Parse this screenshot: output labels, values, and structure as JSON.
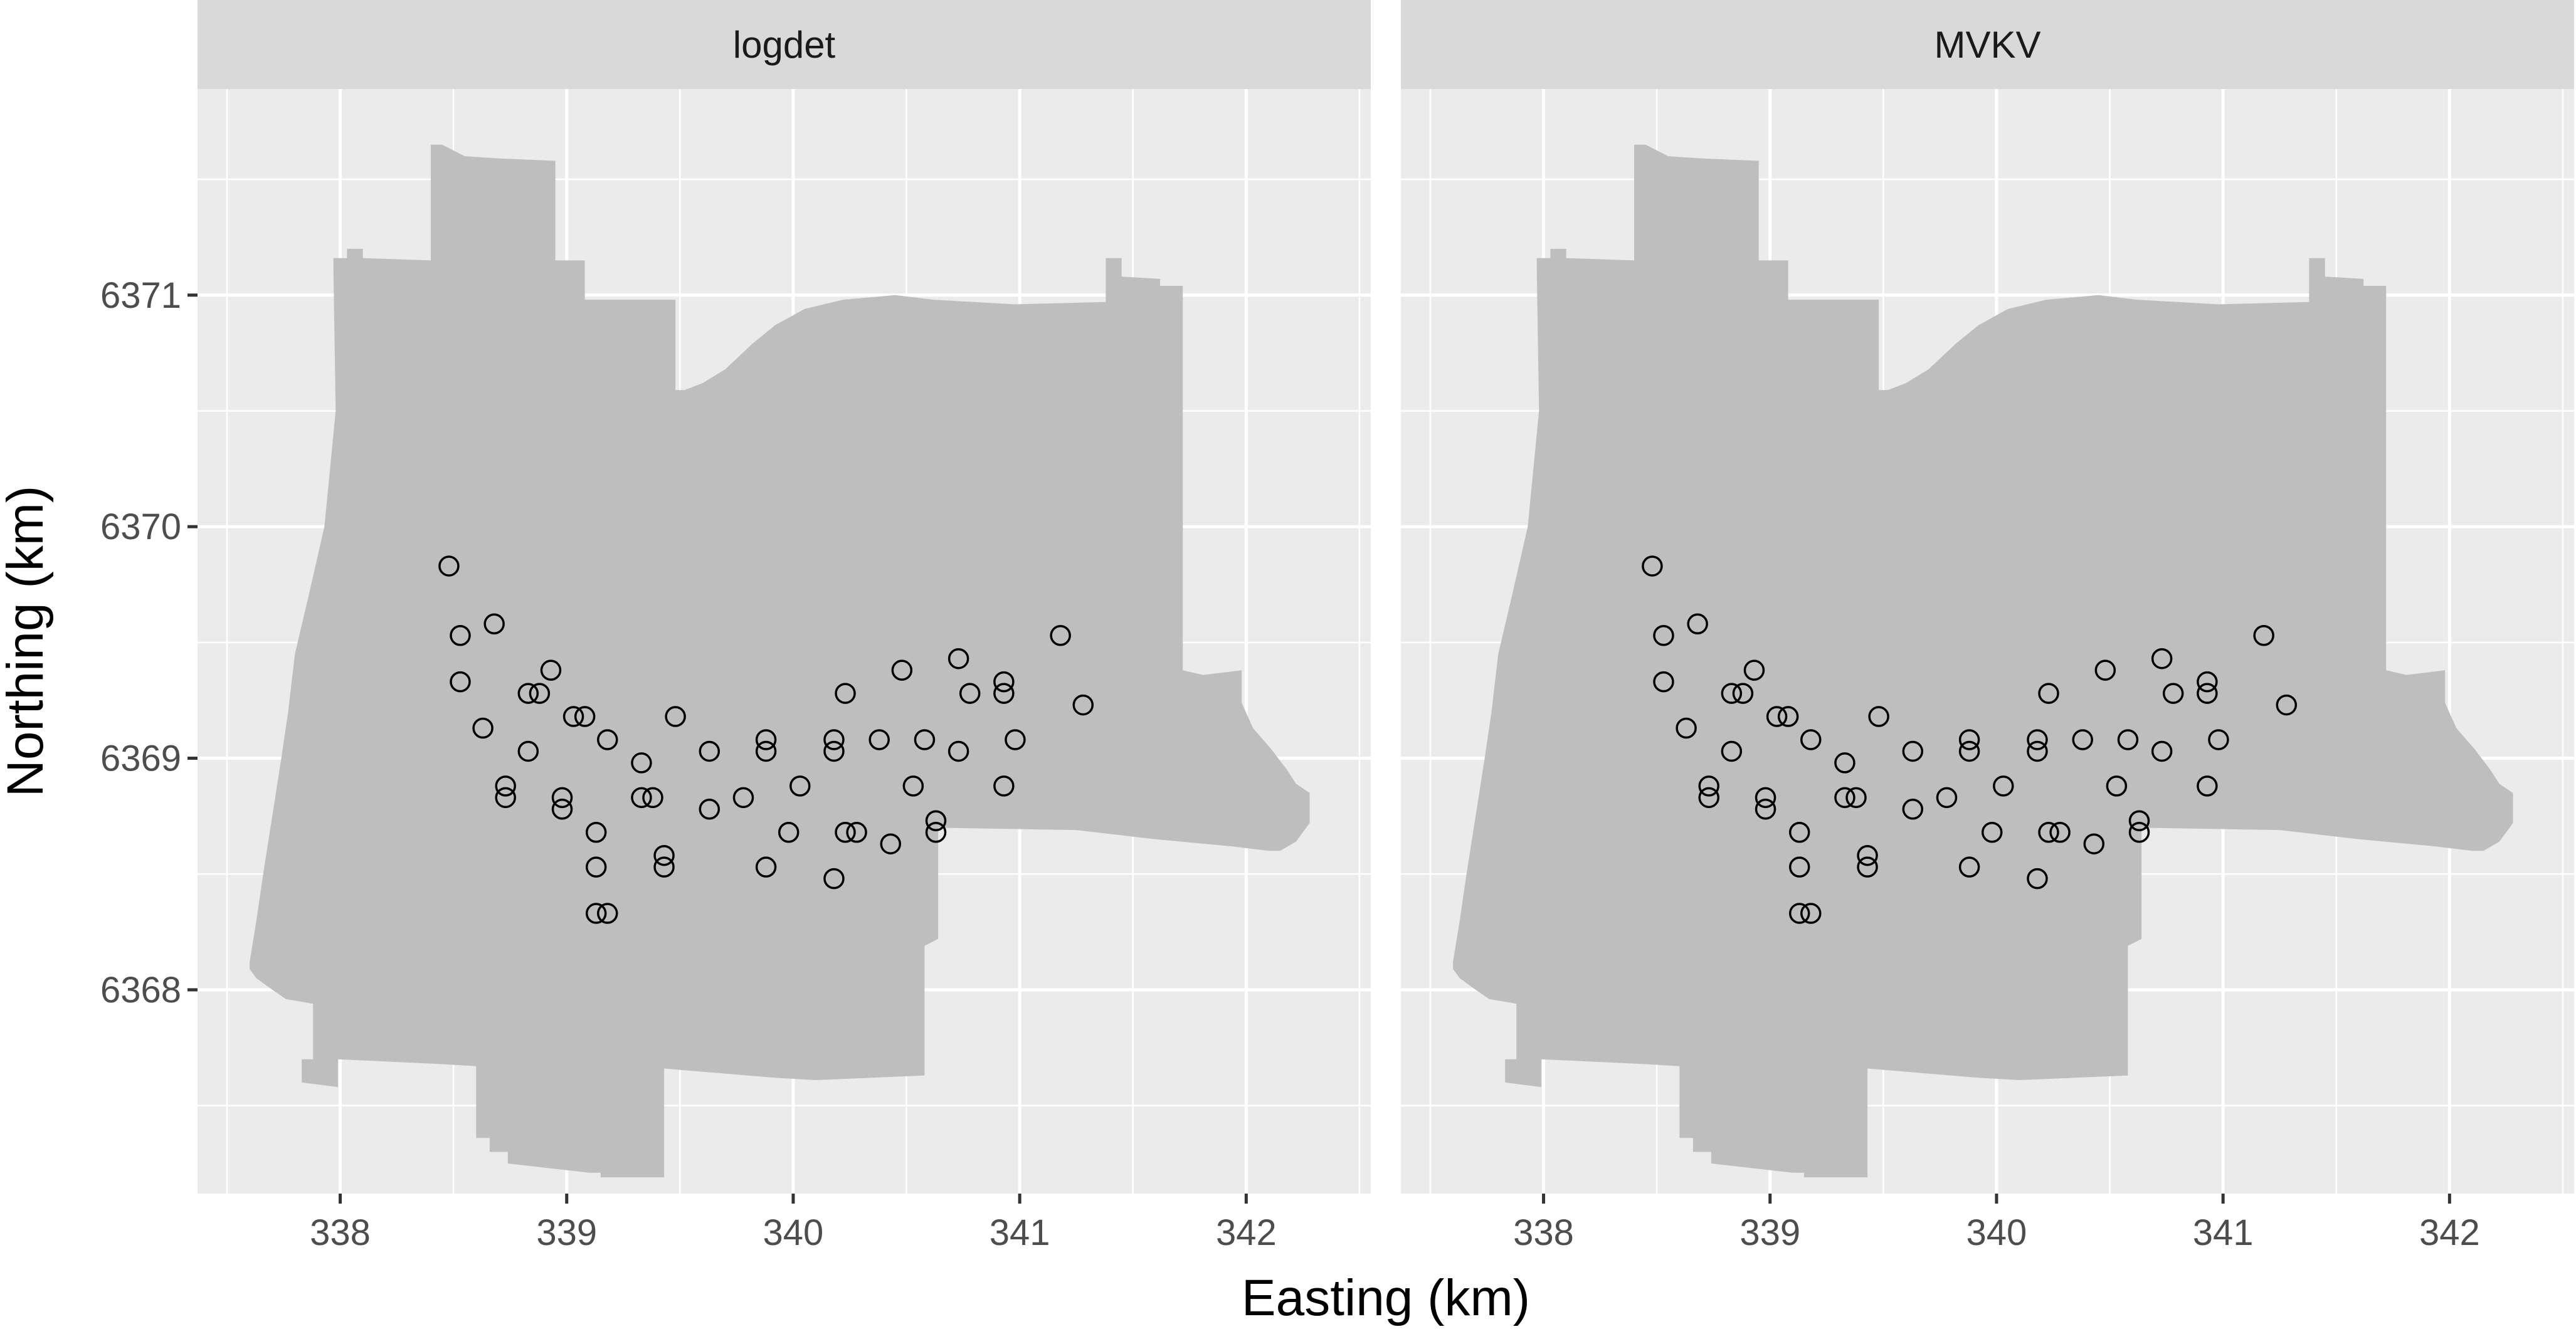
{
  "chart_data": {
    "type": "scatter",
    "facet_by": "design",
    "facets": [
      "logdet",
      "MVKV"
    ],
    "xlabel": "Easting (km)",
    "ylabel": "Northing (km)",
    "x_ticks": [
      338,
      339,
      340,
      341,
      342
    ],
    "x_tick_labels": [
      "338",
      "339",
      "340",
      "341",
      "342"
    ],
    "y_ticks": [
      6368,
      6369,
      6370,
      6371
    ],
    "y_tick_labels": [
      "6368",
      "6369",
      "6370",
      "6371"
    ],
    "xlim": [
      337.37,
      342.55
    ],
    "ylim": [
      6367.12,
      6371.89
    ],
    "grid": true,
    "legend": "none",
    "colors": {
      "panel_background": "#ebebeb",
      "region_fill": "#bebebe",
      "grid_line": "#ffffff",
      "strip_background": "#d9d9d9",
      "point_stroke": "#000000"
    },
    "study_region": [
      [
        337.6,
        6368.09
      ],
      [
        337.63,
        6368.05
      ],
      [
        337.7,
        6368.0
      ],
      [
        337.76,
        6367.96
      ],
      [
        337.82,
        6367.95
      ],
      [
        337.88,
        6367.94
      ],
      [
        337.88,
        6367.7
      ],
      [
        337.83,
        6367.7
      ],
      [
        337.83,
        6367.6
      ],
      [
        337.99,
        6367.58
      ],
      [
        337.99,
        6367.7
      ],
      [
        338.43,
        6367.68
      ],
      [
        338.6,
        6367.67
      ],
      [
        338.6,
        6367.36
      ],
      [
        338.66,
        6367.36
      ],
      [
        338.66,
        6367.3
      ],
      [
        338.74,
        6367.3
      ],
      [
        338.74,
        6367.25
      ],
      [
        339.1,
        6367.21
      ],
      [
        339.15,
        6367.21
      ],
      [
        339.15,
        6367.19
      ],
      [
        339.43,
        6367.19
      ],
      [
        339.43,
        6367.66
      ],
      [
        339.92,
        6367.62
      ],
      [
        340.1,
        6367.61
      ],
      [
        340.58,
        6367.63
      ],
      [
        340.58,
        6368.19
      ],
      [
        340.64,
        6368.22
      ],
      [
        340.64,
        6368.7
      ],
      [
        341.25,
        6368.69
      ],
      [
        341.6,
        6368.65
      ],
      [
        341.93,
        6368.62
      ],
      [
        342.1,
        6368.6
      ],
      [
        342.15,
        6368.6
      ],
      [
        342.22,
        6368.64
      ],
      [
        342.28,
        6368.72
      ],
      [
        342.28,
        6368.85
      ],
      [
        342.22,
        6368.89
      ],
      [
        342.18,
        6368.95
      ],
      [
        342.11,
        6369.04
      ],
      [
        342.03,
        6369.13
      ],
      [
        341.98,
        6369.24
      ],
      [
        341.98,
        6369.38
      ],
      [
        341.81,
        6369.36
      ],
      [
        341.72,
        6369.38
      ],
      [
        341.72,
        6371.04
      ],
      [
        341.62,
        6371.04
      ],
      [
        341.62,
        6371.07
      ],
      [
        341.45,
        6371.08
      ],
      [
        341.45,
        6371.16
      ],
      [
        341.38,
        6371.16
      ],
      [
        341.38,
        6370.97
      ],
      [
        340.98,
        6370.96
      ],
      [
        340.62,
        6370.98
      ],
      [
        340.45,
        6371.0
      ],
      [
        340.22,
        6370.98
      ],
      [
        340.05,
        6370.94
      ],
      [
        339.92,
        6370.87
      ],
      [
        339.82,
        6370.79
      ],
      [
        339.7,
        6370.68
      ],
      [
        339.6,
        6370.62
      ],
      [
        339.52,
        6370.59
      ],
      [
        339.48,
        6370.59
      ],
      [
        339.48,
        6370.98
      ],
      [
        339.08,
        6370.98
      ],
      [
        339.08,
        6371.15
      ],
      [
        338.95,
        6371.15
      ],
      [
        338.95,
        6371.58
      ],
      [
        338.7,
        6371.59
      ],
      [
        338.55,
        6371.6
      ],
      [
        338.45,
        6371.65
      ],
      [
        338.4,
        6371.65
      ],
      [
        338.4,
        6371.15
      ],
      [
        338.1,
        6371.16
      ],
      [
        338.1,
        6371.2
      ],
      [
        338.03,
        6371.2
      ],
      [
        338.03,
        6371.16
      ],
      [
        337.97,
        6371.16
      ],
      [
        337.97,
        6371.11
      ],
      [
        337.98,
        6370.5
      ],
      [
        337.93,
        6370.0
      ],
      [
        337.86,
        6369.7
      ],
      [
        337.8,
        6369.45
      ],
      [
        337.77,
        6369.2
      ],
      [
        337.74,
        6369.0
      ],
      [
        337.7,
        6368.75
      ],
      [
        337.66,
        6368.5
      ],
      [
        337.63,
        6368.3
      ],
      [
        337.6,
        6368.12
      ]
    ],
    "series": [
      {
        "facet": "logdet",
        "points": [
          [
            338.48,
            6369.83
          ],
          [
            338.53,
            6369.53
          ],
          [
            338.53,
            6369.33
          ],
          [
            338.63,
            6369.13
          ],
          [
            338.68,
            6369.58
          ],
          [
            338.73,
            6368.88
          ],
          [
            338.73,
            6368.83
          ],
          [
            338.83,
            6369.28
          ],
          [
            338.83,
            6369.03
          ],
          [
            338.88,
            6369.28
          ],
          [
            338.93,
            6369.38
          ],
          [
            338.98,
            6368.83
          ],
          [
            338.98,
            6368.78
          ],
          [
            339.03,
            6369.18
          ],
          [
            339.08,
            6369.18
          ],
          [
            339.13,
            6368.68
          ],
          [
            339.13,
            6368.53
          ],
          [
            339.13,
            6368.33
          ],
          [
            339.18,
            6369.08
          ],
          [
            339.18,
            6368.33
          ],
          [
            339.33,
            6368.98
          ],
          [
            339.33,
            6368.83
          ],
          [
            339.38,
            6368.83
          ],
          [
            339.43,
            6368.58
          ],
          [
            339.43,
            6368.53
          ],
          [
            339.48,
            6369.18
          ],
          [
            339.63,
            6369.03
          ],
          [
            339.63,
            6368.78
          ],
          [
            339.78,
            6368.83
          ],
          [
            339.88,
            6369.08
          ],
          [
            339.88,
            6369.03
          ],
          [
            339.88,
            6368.53
          ],
          [
            339.98,
            6368.68
          ],
          [
            340.03,
            6368.88
          ],
          [
            340.18,
            6369.08
          ],
          [
            340.18,
            6369.03
          ],
          [
            340.18,
            6368.48
          ],
          [
            340.23,
            6369.28
          ],
          [
            340.23,
            6368.68
          ],
          [
            340.28,
            6368.68
          ],
          [
            340.38,
            6369.08
          ],
          [
            340.43,
            6368.63
          ],
          [
            340.48,
            6369.38
          ],
          [
            340.53,
            6368.88
          ],
          [
            340.58,
            6369.08
          ],
          [
            340.63,
            6368.73
          ],
          [
            340.63,
            6368.68
          ],
          [
            340.73,
            6369.43
          ],
          [
            340.73,
            6369.03
          ],
          [
            340.78,
            6369.28
          ],
          [
            340.93,
            6369.33
          ],
          [
            340.93,
            6369.28
          ],
          [
            340.93,
            6368.88
          ],
          [
            340.98,
            6369.08
          ],
          [
            341.18,
            6369.53
          ],
          [
            341.28,
            6369.23
          ]
        ]
      },
      {
        "facet": "MVKV",
        "points": [
          [
            338.48,
            6369.83
          ],
          [
            338.53,
            6369.53
          ],
          [
            338.53,
            6369.33
          ],
          [
            338.63,
            6369.13
          ],
          [
            338.68,
            6369.58
          ],
          [
            338.73,
            6368.88
          ],
          [
            338.73,
            6368.83
          ],
          [
            338.83,
            6369.28
          ],
          [
            338.83,
            6369.03
          ],
          [
            338.88,
            6369.28
          ],
          [
            338.93,
            6369.38
          ],
          [
            338.98,
            6368.83
          ],
          [
            338.98,
            6368.78
          ],
          [
            339.03,
            6369.18
          ],
          [
            339.08,
            6369.18
          ],
          [
            339.13,
            6368.68
          ],
          [
            339.13,
            6368.53
          ],
          [
            339.13,
            6368.33
          ],
          [
            339.18,
            6369.08
          ],
          [
            339.18,
            6368.33
          ],
          [
            339.33,
            6368.98
          ],
          [
            339.33,
            6368.83
          ],
          [
            339.38,
            6368.83
          ],
          [
            339.43,
            6368.58
          ],
          [
            339.43,
            6368.53
          ],
          [
            339.48,
            6369.18
          ],
          [
            339.63,
            6369.03
          ],
          [
            339.63,
            6368.78
          ],
          [
            339.78,
            6368.83
          ],
          [
            339.88,
            6369.08
          ],
          [
            339.88,
            6369.03
          ],
          [
            339.88,
            6368.53
          ],
          [
            339.98,
            6368.68
          ],
          [
            340.03,
            6368.88
          ],
          [
            340.18,
            6369.08
          ],
          [
            340.18,
            6369.03
          ],
          [
            340.18,
            6368.48
          ],
          [
            340.23,
            6369.28
          ],
          [
            340.23,
            6368.68
          ],
          [
            340.28,
            6368.68
          ],
          [
            340.38,
            6369.08
          ],
          [
            340.43,
            6368.63
          ],
          [
            340.48,
            6369.38
          ],
          [
            340.53,
            6368.88
          ],
          [
            340.58,
            6369.08
          ],
          [
            340.63,
            6368.73
          ],
          [
            340.63,
            6368.68
          ],
          [
            340.73,
            6369.43
          ],
          [
            340.73,
            6369.03
          ],
          [
            340.78,
            6369.28
          ],
          [
            340.93,
            6369.33
          ],
          [
            340.93,
            6369.28
          ],
          [
            340.93,
            6368.88
          ],
          [
            340.98,
            6369.08
          ],
          [
            341.18,
            6369.53
          ],
          [
            341.28,
            6369.23
          ]
        ]
      }
    ]
  }
}
